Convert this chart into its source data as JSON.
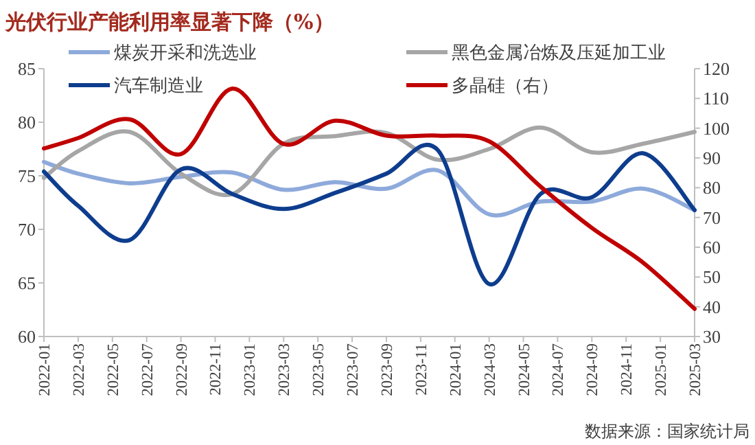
{
  "chart_data": {
    "type": "line",
    "title": "光伏行业产能利用率显著下降（%）",
    "x": [
      "2022-01",
      "2022-03",
      "2022-06",
      "2022-09",
      "2022-12",
      "2023-03",
      "2023-06",
      "2023-09",
      "2023-12",
      "2024-03",
      "2024-06",
      "2024-09",
      "2024-12",
      "2025-03"
    ],
    "series": [
      {
        "name": "煤炭开采和洗选业",
        "color": "#8eaadb",
        "values": [
          76.3,
          75.2,
          74.3,
          74.9,
          75.3,
          73.7,
          74.4,
          73.8,
          75.5,
          71.4,
          72.6,
          72.6,
          73.8,
          71.8
        ]
      },
      {
        "name": "黑色金属冶炼及压延加工业",
        "color": "#a6a6a6",
        "values": [
          74.8,
          77.3,
          79.1,
          75.2,
          73.3,
          78.0,
          78.7,
          79.0,
          76.5,
          77.5,
          79.5,
          77.2,
          78.0,
          79.1
        ]
      },
      {
        "name": "汽车制造业",
        "color": "#0e3d8e",
        "values": [
          75.4,
          72.2,
          69.0,
          75.6,
          73.3,
          71.9,
          73.4,
          75.2,
          77.4,
          64.9,
          73.3,
          73.0,
          77.1,
          71.8
        ]
      },
      {
        "name": "多晶硅（右）",
        "color": "#c00000",
        "axis": "y2",
        "values": [
          93.2,
          96.7,
          103.0,
          91.3,
          113.3,
          94.7,
          102.5,
          97.5,
          97.5,
          95.6,
          80.4,
          66.5,
          54.8,
          39.3
        ]
      }
    ],
    "xlim": [
      "2022-01",
      "2025-03"
    ],
    "xticks": [
      "2022-01",
      "2022-03",
      "2022-05",
      "2022-07",
      "2022-09",
      "2022-11",
      "2023-01",
      "2023-03",
      "2023-05",
      "2023-07",
      "2023-09",
      "2023-11",
      "2024-01",
      "2024-03",
      "2024-05",
      "2024-07",
      "2024-09",
      "2024-11",
      "2025-01",
      "2025-03"
    ],
    "ylim": [
      60,
      85
    ],
    "yticks": [
      60,
      65,
      70,
      75,
      80,
      85
    ],
    "y2lim": [
      30,
      120
    ],
    "y2ticks": [
      30,
      40,
      50,
      60,
      70,
      80,
      90,
      100,
      110,
      120
    ],
    "legend": "top",
    "grid": false,
    "marker": "none",
    "line_style": "solid",
    "annotations": [
      "数据来源：国家统计局"
    ]
  }
}
